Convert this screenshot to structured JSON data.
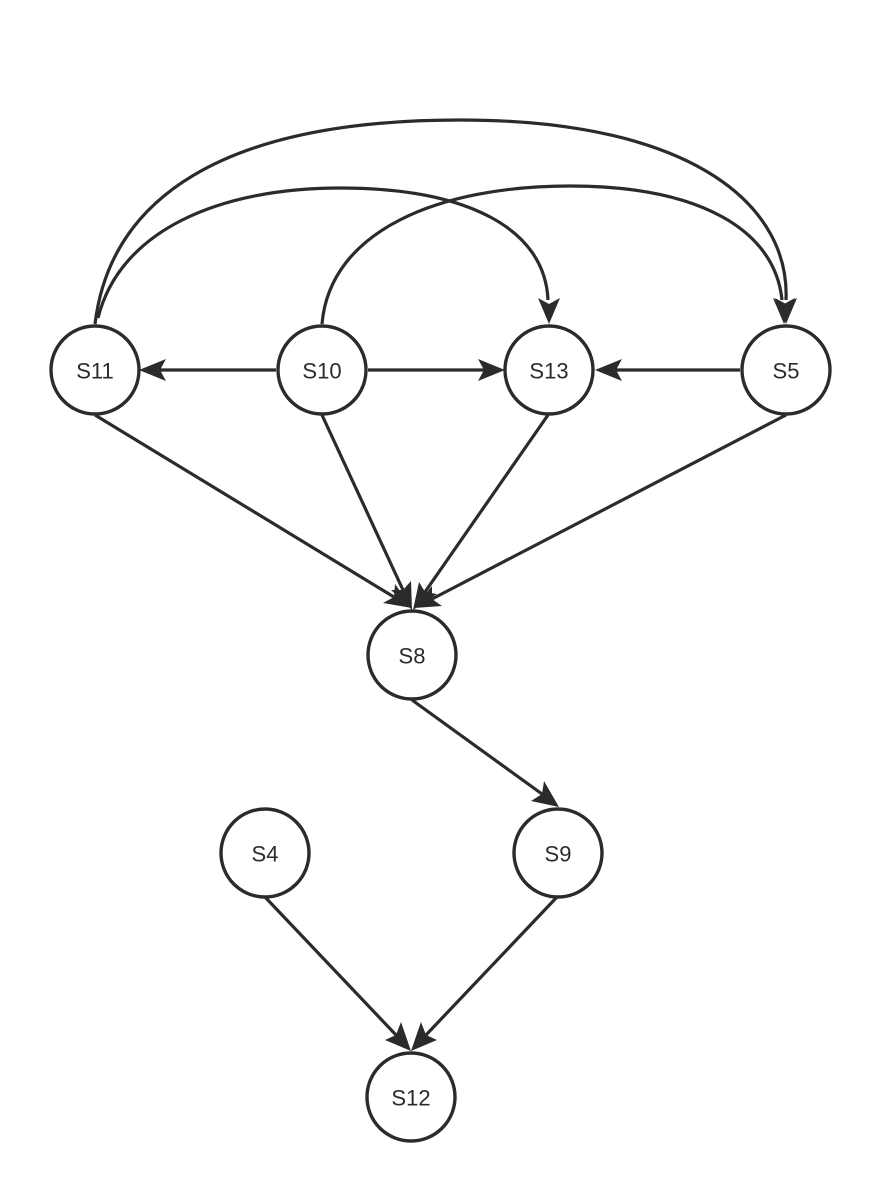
{
  "graph": {
    "nodes": [
      {
        "id": "S11",
        "label": "S11"
      },
      {
        "id": "S10",
        "label": "S10"
      },
      {
        "id": "S13",
        "label": "S13"
      },
      {
        "id": "S5",
        "label": "S5"
      },
      {
        "id": "S8",
        "label": "S8"
      },
      {
        "id": "S4",
        "label": "S4"
      },
      {
        "id": "S9",
        "label": "S9"
      },
      {
        "id": "S12",
        "label": "S12"
      }
    ],
    "edges": [
      {
        "from": "S10",
        "to": "S11"
      },
      {
        "from": "S10",
        "to": "S13"
      },
      {
        "from": "S5",
        "to": "S13"
      },
      {
        "from": "S11",
        "to": "S5"
      },
      {
        "from": "S11",
        "to": "S13"
      },
      {
        "from": "S10",
        "to": "S5"
      },
      {
        "from": "S11",
        "to": "S8"
      },
      {
        "from": "S10",
        "to": "S8"
      },
      {
        "from": "S13",
        "to": "S8"
      },
      {
        "from": "S5",
        "to": "S8"
      },
      {
        "from": "S8",
        "to": "S9"
      },
      {
        "from": "S4",
        "to": "S12"
      },
      {
        "from": "S9",
        "to": "S12"
      }
    ]
  }
}
